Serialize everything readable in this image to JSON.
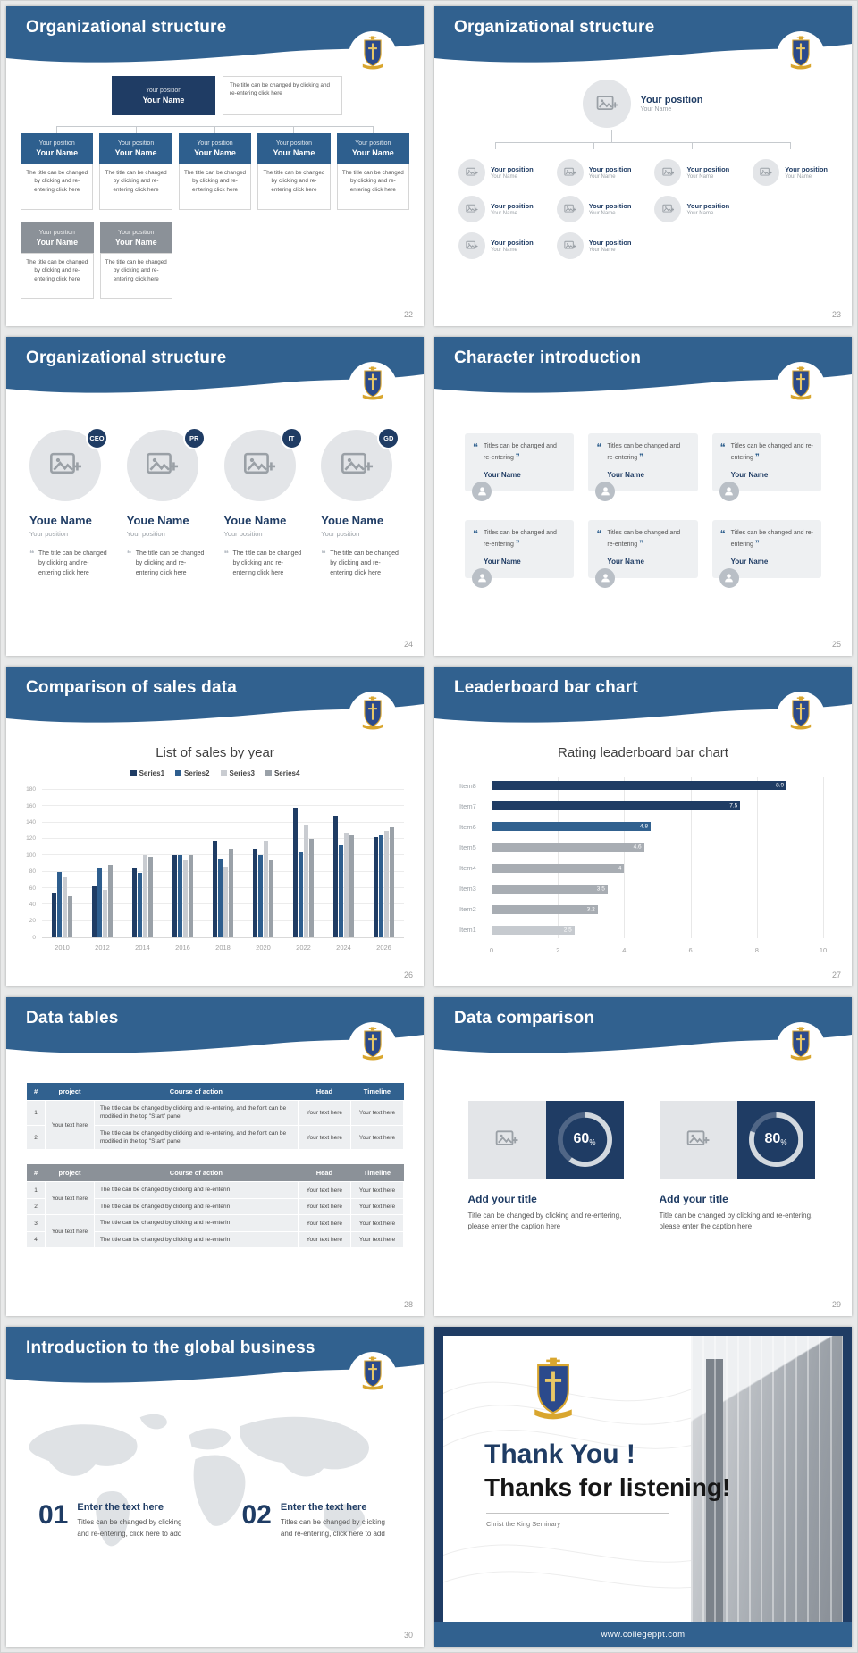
{
  "accent_colors": {
    "header_blue": "#31618f",
    "navy": "#1f3c64",
    "steel": "#2e5e8e",
    "gray_box": "#8b9198",
    "gold": "#d9a62e"
  },
  "slides": {
    "s22": {
      "title": "Organizational structure",
      "page": "22",
      "position_label": "Your position",
      "name_label": "Your Name",
      "desc_text": "The title can be changed by clicking and re-entering click here"
    },
    "s23": {
      "title": "Organizational structure",
      "page": "23",
      "position_label": "Your position",
      "name_label": "Your Name"
    },
    "s24": {
      "title": "Organizational structure",
      "page": "24",
      "badges": [
        "CEO",
        "PR",
        "IT",
        "GD"
      ],
      "name_label": "Youe Name",
      "position_label": "Your position",
      "desc_text": "The title can be changed by clicking and re-entering click here"
    },
    "s25": {
      "title": "Character introduction",
      "page": "25",
      "quote_text": "Titles can be changed and re-entering",
      "name_label": "Your Name"
    },
    "s26": {
      "title": "Comparison of sales data",
      "page": "26"
    },
    "s27": {
      "title": "Leaderboard bar chart",
      "page": "27"
    },
    "s28": {
      "title": "Data tables",
      "page": "28",
      "table1": {
        "headers": [
          "#",
          "project",
          "Course of action",
          "Head",
          "Timeline"
        ],
        "project_merged": "Your text here",
        "rows": [
          {
            "num": "1",
            "course": "The title can be changed by clicking and re-entering, and the font can be modified in the top \"Start\" panel",
            "head": "Your text here",
            "timeline": "Your text here"
          },
          {
            "num": "2",
            "course": "The title can be changed by clicking and re-entering, and the font can be modified in the top \"Start\" panel",
            "head": "Your text here",
            "timeline": "Your text here"
          }
        ]
      },
      "table2": {
        "headers": [
          "#",
          "project",
          "Course of action",
          "Head",
          "Timeline"
        ],
        "project_merged_1": "Your text here",
        "project_merged_2": "Your text here",
        "rows": [
          {
            "num": "1",
            "course": "The title can be changed by clicking and re-enterin",
            "head": "Your text here",
            "timeline": "Your text here"
          },
          {
            "num": "2",
            "course": "The title can be changed by clicking and re-enterin",
            "head": "Your text here",
            "timeline": "Your text here"
          },
          {
            "num": "3",
            "course": "The title can be changed by clicking and re-enterin",
            "head": "Your text here",
            "timeline": "Your text here"
          },
          {
            "num": "4",
            "course": "The title can be changed by clicking and re-enterin",
            "head": "Your text here",
            "timeline": "Your text here"
          }
        ]
      }
    },
    "s29": {
      "title": "Data comparison",
      "page": "29",
      "items": [
        {
          "percent": 60,
          "percent_label": "60",
          "title": "Add your title",
          "caption": "Title can be changed by clicking and re-entering, please enter the caption here"
        },
        {
          "percent": 80,
          "percent_label": "80",
          "title": "Add your title",
          "caption": "Title can be changed by clicking and re-entering, please enter the caption here"
        }
      ]
    },
    "s30": {
      "title": "Introduction to the global business",
      "page": "30",
      "items": [
        {
          "num": "01",
          "heading": "Enter the text here",
          "caption": "Titles can be changed by clicking and re-entering, click here to add"
        },
        {
          "num": "02",
          "heading": "Enter the text here",
          "caption": "Titles can be changed by clicking and re-entering, click here to add"
        }
      ]
    },
    "s31": {
      "thank_you": "Thank You !",
      "subtitle": "Thanks for listening!",
      "org": "Christ the King Seminary",
      "footer_url": "www.collegeppt.com"
    }
  },
  "chart_data": [
    {
      "type": "bar",
      "title": "List of sales by year",
      "categories": [
        "2010",
        "2012",
        "2014",
        "2016",
        "2018",
        "2020",
        "2022",
        "2024",
        "2026"
      ],
      "series": [
        {
          "name": "Series1",
          "color": "#1f3c64",
          "values": [
            55,
            62,
            85,
            100,
            118,
            108,
            158,
            148,
            122
          ]
        },
        {
          "name": "Series2",
          "color": "#2e5e8e",
          "values": [
            80,
            85,
            78,
            100,
            96,
            100,
            104,
            112,
            124
          ]
        },
        {
          "name": "Series3",
          "color": "#c9ccd1",
          "values": [
            74,
            58,
            100,
            95,
            86,
            118,
            138,
            128,
            130
          ]
        },
        {
          "name": "Series4",
          "color": "#9aa1a8",
          "values": [
            50,
            88,
            98,
            100,
            108,
            94,
            120,
            126,
            134
          ]
        }
      ],
      "xlabel": "",
      "ylabel": "",
      "ylim": [
        0,
        180
      ],
      "yticks": [
        0,
        20,
        40,
        60,
        80,
        100,
        120,
        140,
        160,
        180
      ],
      "legend_position": "top",
      "grid": true
    },
    {
      "type": "bar-horizontal",
      "title": "Rating leaderboard bar chart",
      "categories": [
        "Item1",
        "Item2",
        "Item3",
        "Item4",
        "Item5",
        "Item6",
        "Item7",
        "Item8"
      ],
      "values": [
        2.5,
        3.2,
        3.5,
        4,
        4.6,
        4.8,
        7.5,
        8.9
      ],
      "colors": [
        "#c6cacf",
        "#a8adb3",
        "#a8adb3",
        "#a8adb3",
        "#a8adb3",
        "#31618f",
        "#1f3c64",
        "#1f3c64"
      ],
      "xlabel": "",
      "ylabel": "",
      "xlim": [
        0,
        10
      ],
      "xticks": [
        0,
        2,
        4,
        6,
        8,
        10
      ],
      "grid": true
    }
  ]
}
